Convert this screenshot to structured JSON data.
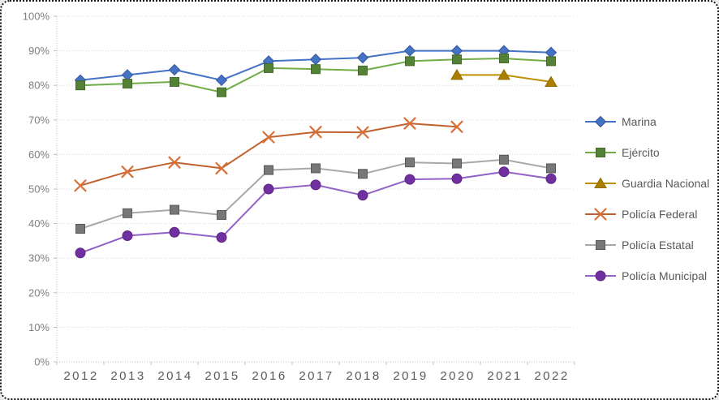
{
  "frame": {
    "background": "#ffffff",
    "border_color": "#141414"
  },
  "chart_data": {
    "type": "line",
    "title": "",
    "xlabel": "",
    "ylabel": "",
    "ylim": [
      0,
      100
    ],
    "grid": true,
    "legend_position": "right",
    "categories": [
      "2012",
      "2013",
      "2014",
      "2015",
      "2016",
      "2017",
      "2018",
      "2019",
      "2020",
      "2021",
      "2022"
    ],
    "yticks": [
      {
        "label": "100%",
        "value": 100
      },
      {
        "label": "90%",
        "value": 90
      },
      {
        "label": "80%",
        "value": 80
      },
      {
        "label": "70%",
        "value": 70
      },
      {
        "label": "60%",
        "value": 60
      },
      {
        "label": "50%",
        "value": 50
      },
      {
        "label": "40%",
        "value": 40
      },
      {
        "label": "30%",
        "value": 30
      },
      {
        "label": "20%",
        "value": 20
      },
      {
        "label": "10%",
        "value": 10
      },
      {
        "label": "0%",
        "value": 0
      }
    ],
    "series": [
      {
        "name": "Marina",
        "slug": "marina",
        "marker": "diamond",
        "line_color": "#4472c4",
        "marker_color": "#4472c4",
        "marker_stroke": "#35589c",
        "values": [
          81.5,
          83,
          84.5,
          81.5,
          87,
          87.5,
          88,
          90,
          90,
          90,
          89.5
        ]
      },
      {
        "name": "Ejército",
        "slug": "ejercito",
        "marker": "square",
        "line_color": "#70ad47",
        "marker_color": "#538135",
        "marker_stroke": "#44692c",
        "values": [
          80,
          80.5,
          81,
          78,
          85,
          84.7,
          84.3,
          87,
          87.5,
          87.8,
          87
        ]
      },
      {
        "name": "Guardia Nacional",
        "slug": "guardia-nacional",
        "marker": "triangle",
        "line_color": "#bf8f00",
        "marker_color": "#ad7f00",
        "marker_stroke": "#8f6b00",
        "values": [
          null,
          null,
          null,
          null,
          null,
          null,
          null,
          null,
          83,
          83,
          81
        ]
      },
      {
        "name": "Policía Federal",
        "slug": "policia-federal",
        "marker": "x",
        "line_color": "#c0622f",
        "marker_color": "#d9703a",
        "marker_stroke": "#d9703a",
        "values": [
          51,
          55,
          57.7,
          56,
          65,
          66.5,
          66.4,
          69,
          68,
          null,
          null
        ]
      },
      {
        "name": "Policía Estatal",
        "slug": "policia-estatal",
        "marker": "square",
        "line_color": "#a8a8a8",
        "marker_color": "#777777",
        "marker_stroke": "#595959",
        "values": [
          38.5,
          43,
          44,
          42.5,
          55.5,
          56,
          54.4,
          57.7,
          57.4,
          58.5,
          56
        ]
      },
      {
        "name": "Policía Municipal",
        "slug": "policia-municipal",
        "marker": "circle",
        "line_color": "#9260c6",
        "marker_color": "#7030a0",
        "marker_stroke": "#5d2585",
        "values": [
          31.5,
          36.5,
          37.5,
          36,
          50,
          51.2,
          48.2,
          52.8,
          53,
          55,
          53
        ]
      }
    ]
  }
}
